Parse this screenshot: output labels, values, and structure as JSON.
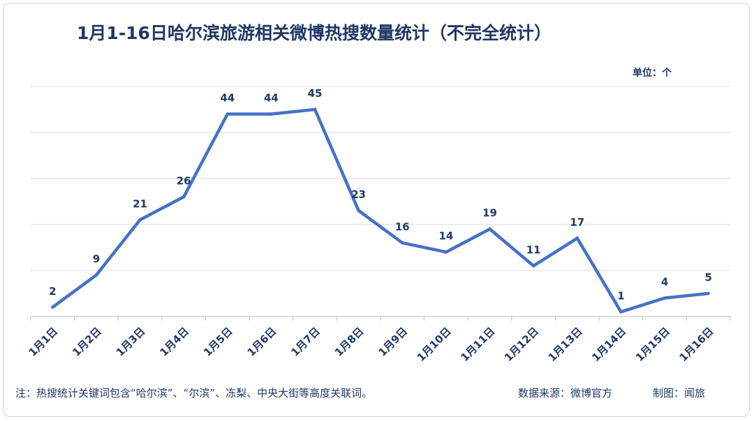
{
  "chart_data": {
    "type": "line",
    "title": "1月1-16日哈尔滨旅游相关微博热搜数量统计（不完全统计）",
    "unit_label": "单位：个",
    "categories": [
      "1月1日",
      "1月2日",
      "1月3日",
      "1月4日",
      "1月5日",
      "1月6日",
      "1月7日",
      "1月8日",
      "1月9日",
      "1月10日",
      "1月11日",
      "1月12日",
      "1月13日",
      "1月14日",
      "1月15日",
      "1月16日"
    ],
    "series": [
      {
        "values": [
          2,
          9,
          21,
          26,
          44,
          44,
          45,
          23,
          16,
          14,
          19,
          11,
          17,
          1,
          4,
          5
        ]
      }
    ],
    "ylim": [
      0,
      50
    ],
    "grid": true,
    "line_color": "#4472C4",
    "label_color": "#1F3864",
    "grid_color": "#D9D9D9"
  },
  "footer": {
    "note": "注：热搜统计关键词包含“哈尔滨”、“尔滨”、冻梨、中央大街等高度关联词。",
    "source": "数据来源：微博官方",
    "credit": "制图：闻旅"
  }
}
